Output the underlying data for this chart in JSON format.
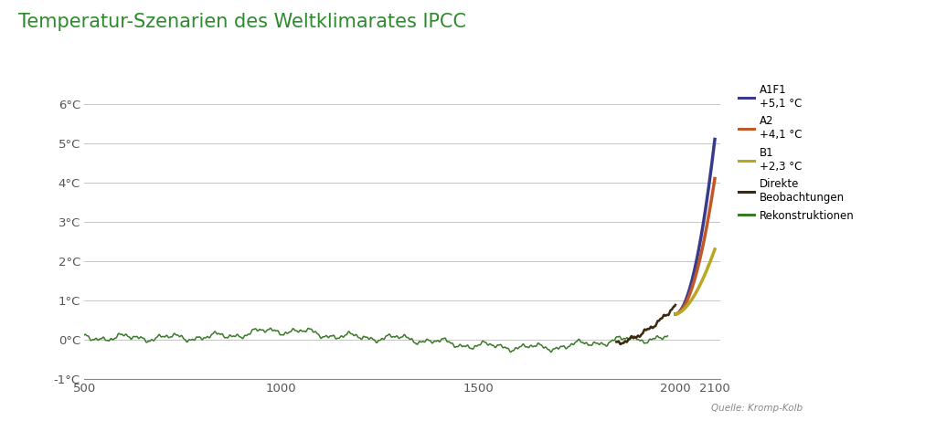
{
  "title": "Temperatur-Szenarien des Weltklimarates IPCC",
  "title_color": "#2d8a2d",
  "title_fontsize": 15,
  "background_color": "#ffffff",
  "xlim": [
    500,
    2115
  ],
  "ylim": [
    -1.0,
    6.5
  ],
  "yticks": [
    -1,
    0,
    1,
    2,
    3,
    4,
    5,
    6
  ],
  "ytick_labels": [
    "-1°C",
    "0°C",
    "1°C",
    "2°C",
    "3°C",
    "4°C",
    "5°C",
    "6°C"
  ],
  "xticks": [
    500,
    1000,
    1500,
    2000,
    2100
  ],
  "source_text": "Quelle: Kromp-Kolb",
  "legend_entries": [
    {
      "label": "A1F1\n+5,1 °C",
      "color": "#3a3a8c"
    },
    {
      "label": "A2\n+4,1 °C",
      "color": "#c05828"
    },
    {
      "label": "B1\n+2,3 °C",
      "color": "#b8a820"
    },
    {
      "label": "Direkte\nBeobachtungen",
      "color": "#3d2810"
    },
    {
      "label": "Rekonstruktionen",
      "color": "#3a7a2a"
    }
  ],
  "colors": {
    "A1F1": "#3a3a8c",
    "A2": "#c05828",
    "B1": "#b8a820",
    "direct": "#3d2810",
    "rekon": "#3a7a2a"
  },
  "grid_color": "#bbbbbb",
  "axis_color": "#888888"
}
